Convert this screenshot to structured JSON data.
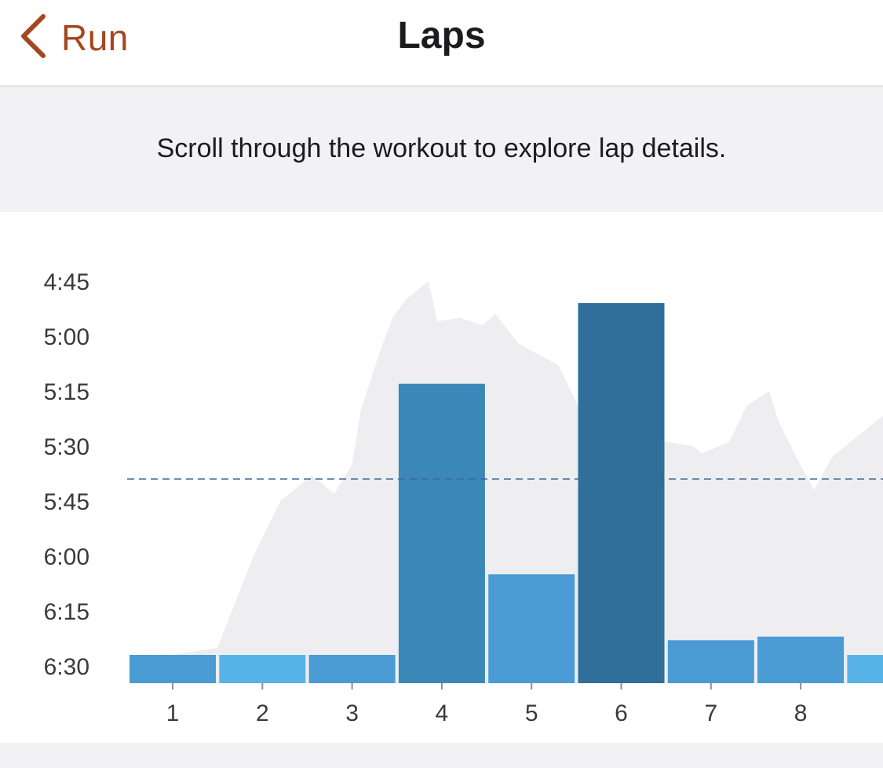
{
  "nav": {
    "back_label": "Run",
    "title": "Laps",
    "accent": "#a5471e"
  },
  "hint": {
    "text": "Scroll through the workout to explore lap details."
  },
  "chart_data": {
    "type": "bar",
    "title": "",
    "xlabel": "",
    "ylabel": "",
    "y_axis_unit": "pace (min:sec)",
    "y_inverted": true,
    "ylim": [
      "6:30",
      "4:45"
    ],
    "yticks": [
      "4:45",
      "5:00",
      "5:15",
      "5:30",
      "5:45",
      "6:00",
      "6:15",
      "6:30"
    ],
    "categories": [
      "1",
      "2",
      "3",
      "4",
      "5",
      "6",
      "7",
      "8",
      "9"
    ],
    "category_labels_shown": [
      "1",
      "2",
      "3",
      "4",
      "5",
      "6",
      "7",
      "8"
    ],
    "values": [
      "6:27",
      "6:27",
      "6:27",
      "5:13",
      "6:05",
      "4:51",
      "6:23",
      "6:22",
      "6:27"
    ],
    "bar_colors": [
      "#4a9bd4",
      "#58b3e8",
      "#4a9bd4",
      "#3b87b8",
      "#4a9bd4",
      "#2f6f99",
      "#4a9bd4",
      "#4a9bd4",
      "#58b3e8"
    ],
    "average_line": "5:39",
    "background_profile": {
      "color": "#eeeef1",
      "x": [
        1,
        1.5,
        1.9,
        2.2,
        2.55,
        2.8,
        3.0,
        3.1,
        3.3,
        3.45,
        3.6,
        3.85,
        3.95,
        4.2,
        4.45,
        4.6,
        4.85,
        5.3,
        5.5,
        5.8,
        6.0,
        6.3,
        6.8,
        6.9,
        7.2,
        7.4,
        7.65,
        7.75,
        7.95,
        8.15,
        8.35,
        9.0
      ],
      "y": [
        "6:27",
        "6:25",
        "6:00",
        "5:45",
        "5:38",
        "5:43",
        "5:35",
        "5:20",
        "5:05",
        "4:55",
        "4:50",
        "4:45",
        "4:56",
        "4:55",
        "4:57",
        "4:54",
        "5:02",
        "5:08",
        "5:18",
        "5:30",
        "5:27",
        "5:28",
        "5:30",
        "5:32",
        "5:29",
        "5:19",
        "5:15",
        "5:23",
        "5:33",
        "5:42",
        "5:33",
        "5:20"
      ]
    }
  }
}
